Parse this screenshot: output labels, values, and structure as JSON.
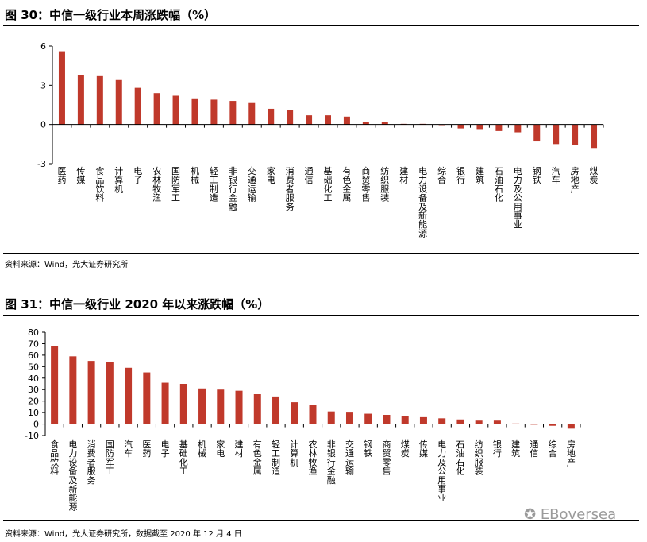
{
  "figure1": {
    "title": "图 30：中信一级行业本周涨跌幅（%）",
    "source": "资料来源：Wind，光大证券研究所"
  },
  "figure2": {
    "title": "图 31：中信一级行业 2020 年以来涨跌幅（%）",
    "source": "资料来源：Wind，光大证券研究所，数据截至 2020 年 12 月 4 日"
  },
  "watermark": "EBoversea",
  "bar_color": "#c0392b",
  "chart_data": [
    {
      "type": "bar",
      "title": "图 30：中信一级行业本周涨跌幅（%）",
      "categories": [
        "医药",
        "传媒",
        "食品饮料",
        "计算机",
        "电子",
        "农林牧渔",
        "国防军工",
        "机械",
        "轻工制造",
        "非银行金融",
        "交通运输",
        "家电",
        "消费者服务",
        "通信",
        "基础化工",
        "有色金属",
        "商贸零售",
        "纺织服装",
        "建材",
        "电力设备及新能源",
        "综合",
        "银行",
        "建筑",
        "石油石化",
        "电力及公用事业",
        "钢铁",
        "汽车",
        "房地产",
        "煤炭"
      ],
      "values": [
        5.6,
        3.8,
        3.7,
        3.4,
        2.8,
        2.4,
        2.2,
        2.0,
        1.9,
        1.8,
        1.7,
        1.2,
        1.1,
        0.7,
        0.7,
        0.6,
        0.2,
        0.2,
        0.05,
        0.05,
        0.0,
        -0.3,
        -0.35,
        -0.5,
        -0.6,
        -1.3,
        -1.5,
        -1.6,
        -1.8
      ],
      "ylim": [
        -3,
        6
      ],
      "yticks": [
        -3,
        0,
        3,
        6
      ],
      "xlabel": "",
      "ylabel": ""
    },
    {
      "type": "bar",
      "title": "图 31：中信一级行业 2020 年以来涨跌幅（%）",
      "categories": [
        "食品饮料",
        "电力设备及新能源",
        "消费者服务",
        "国防军工",
        "汽车",
        "医药",
        "电子",
        "基础化工",
        "机械",
        "家电",
        "建材",
        "有色金属",
        "轻工制造",
        "计算机",
        "农林牧渔",
        "非银行金融",
        "交通运输",
        "钢铁",
        "商贸零售",
        "煤炭",
        "传媒",
        "电力及公用事业",
        "石油石化",
        "纺织服装",
        "银行",
        "建筑",
        "通信",
        "综合",
        "房地产"
      ],
      "values": [
        68,
        59,
        55,
        54,
        49,
        45,
        36,
        35,
        31,
        30,
        29,
        26,
        24,
        19,
        17,
        11,
        10,
        9,
        8,
        7,
        6,
        5,
        4,
        3,
        3,
        0.5,
        -0.5,
        -1.5,
        -4
      ],
      "ylim": [
        -10,
        80
      ],
      "yticks": [
        -10,
        0,
        10,
        20,
        30,
        40,
        50,
        60,
        70,
        80
      ],
      "xlabel": "",
      "ylabel": ""
    }
  ]
}
